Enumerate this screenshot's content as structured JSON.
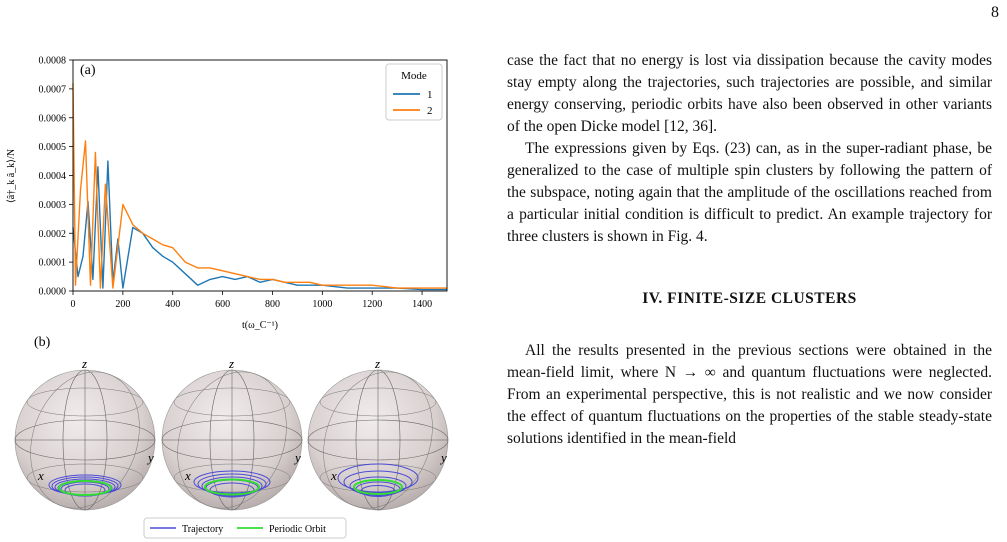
{
  "page_number": "8",
  "figure": {
    "panel_a_label": "(a)",
    "panel_b_label": "(b)",
    "chart_data": {
      "type": "line",
      "xlabel": "t(ω_C⁻¹)",
      "ylabel": "⟨â†_k â_k⟩/N",
      "xlim": [
        0,
        1500
      ],
      "ylim": [
        0,
        0.0008
      ],
      "xticks": [
        "0",
        "200",
        "400",
        "600",
        "800",
        "1000",
        "1200",
        "1400"
      ],
      "yticks": [
        "0.0000",
        "0.0001",
        "0.0002",
        "0.0003",
        "0.0004",
        "0.0005",
        "0.0006",
        "0.0007",
        "0.0008"
      ],
      "legend_title": "Mode",
      "legend_position": "top-right",
      "series": [
        {
          "name": "1",
          "color": "#1f77b4",
          "x": [
            0,
            20,
            40,
            60,
            80,
            100,
            120,
            140,
            160,
            180,
            200,
            240,
            280,
            320,
            360,
            400,
            450,
            500,
            550,
            600,
            650,
            700,
            750,
            800,
            850,
            900,
            950,
            1000,
            1100,
            1200,
            1300,
            1400,
            1500
          ],
          "y": [
            0.00022,
            5e-05,
            0.00012,
            0.00031,
            4e-05,
            0.00043,
            1e-05,
            0.00045,
            3e-05,
            0.00018,
            1e-05,
            0.00022,
            0.0002,
            0.00015,
            0.00012,
            0.0001,
            6e-05,
            2e-05,
            4e-05,
            5e-05,
            4e-05,
            5e-05,
            3e-05,
            4e-05,
            3e-05,
            2e-05,
            2e-05,
            2e-05,
            1e-05,
            1e-05,
            1e-05,
            5e-06,
            5e-06
          ]
        },
        {
          "name": "2",
          "color": "#ff7f0e",
          "x": [
            0,
            10,
            30,
            50,
            70,
            90,
            110,
            130,
            160,
            200,
            240,
            280,
            320,
            360,
            400,
            450,
            500,
            550,
            600,
            650,
            700,
            750,
            800,
            850,
            900,
            950,
            1000,
            1100,
            1200,
            1300,
            1400,
            1500
          ],
          "y": [
            0.00072,
            2e-05,
            0.00035,
            0.00052,
            2e-05,
            0.00048,
            1e-05,
            0.00037,
            1e-05,
            0.0003,
            0.00023,
            0.0002,
            0.00018,
            0.00016,
            0.00015,
            0.0001,
            8e-05,
            8e-05,
            7e-05,
            6e-05,
            5e-05,
            4e-05,
            4e-05,
            3e-05,
            3e-05,
            3e-05,
            2e-05,
            2e-05,
            2e-05,
            1e-05,
            1e-05,
            1e-05
          ]
        }
      ]
    },
    "spheres": {
      "axis_x": "x",
      "axis_y": "y",
      "axis_z": "z",
      "legend": [
        {
          "label": "Trajectory",
          "color": "#4b4bd6"
        },
        {
          "label": "Periodic Orbit",
          "color": "#33dd33"
        }
      ]
    }
  },
  "text": {
    "para1": "case the fact that no energy is lost via dissipation because the cavity modes stay empty along the trajectories, such trajectories are possible, and similar energy conserving, periodic orbits have also been observed in other variants of the open Dicke model [12, 36].",
    "para2": "The expressions given by Eqs. (23) can, as in the super-radiant phase, be generalized to the case of multiple spin clusters by following the pattern of the subspace, noting again that the amplitude of the oscillations reached from a particular initial condition is difficult to predict. An example trajectory for three clusters is shown in Fig. 4.",
    "section_heading": "IV.  FINITE-SIZE CLUSTERS",
    "para3": "All the results presented in the previous sections were obtained in the mean-field limit, where N → ∞ and quantum fluctuations were neglected. From an experimental perspective, this is not realistic and we now consider the effect of quantum fluctuations on the properties of the stable steady-state solutions identified in the mean-field"
  }
}
